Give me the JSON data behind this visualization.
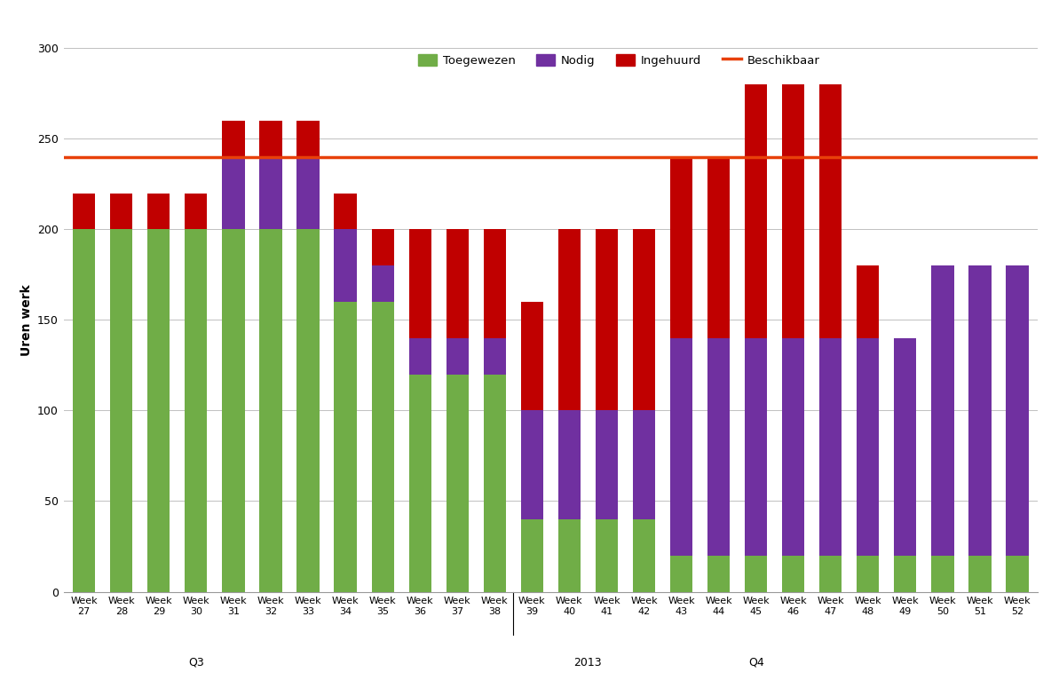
{
  "weeks": [
    "Week\n27",
    "Week\n28",
    "Week\n29",
    "Week\n30",
    "Week\n31",
    "Week\n32",
    "Week\n33",
    "Week\n34",
    "Week\n35",
    "Week\n36",
    "Week\n37",
    "Week\n38",
    "Week\n39",
    "Week\n40",
    "Week\n41",
    "Week\n42",
    "Week\n43",
    "Week\n44",
    "Week\n45",
    "Week\n46",
    "Week\n47",
    "Week\n48",
    "Week\n49",
    "Week\n50",
    "Week\n51",
    "Week\n52"
  ],
  "toegewezen": [
    200,
    200,
    200,
    200,
    200,
    200,
    200,
    160,
    160,
    120,
    120,
    120,
    40,
    40,
    40,
    40,
    20,
    20,
    20,
    20,
    20,
    20,
    20,
    20,
    20,
    20
  ],
  "nodig": [
    0,
    0,
    0,
    0,
    40,
    40,
    40,
    40,
    20,
    20,
    20,
    20,
    60,
    60,
    60,
    60,
    120,
    120,
    120,
    120,
    120,
    120,
    120,
    160,
    160,
    160
  ],
  "ingehuurd": [
    20,
    20,
    20,
    20,
    20,
    20,
    20,
    20,
    20,
    60,
    60,
    60,
    60,
    100,
    100,
    100,
    100,
    100,
    140,
    140,
    140,
    40,
    0,
    0,
    0,
    0
  ],
  "beschikbaar": 240,
  "ylim": [
    0,
    300
  ],
  "yticks": [
    0,
    50,
    100,
    150,
    200,
    250,
    300
  ],
  "color_toegewezen": "#70AD47",
  "color_nodig": "#7030A0",
  "color_ingehuurd": "#C00000",
  "color_beschikbaar": "#E8400A",
  "ylabel": "Uren werk",
  "legend_labels": [
    "Toegewezen",
    "Nodig",
    "Ingehuurd",
    "Beschikbaar"
  ],
  "q3_label": "Q3",
  "q4_label": "Q4",
  "year_label": "2013",
  "background_color": "#FFFFFF",
  "grid_color": "#C0C0C0",
  "bar_width": 0.6
}
